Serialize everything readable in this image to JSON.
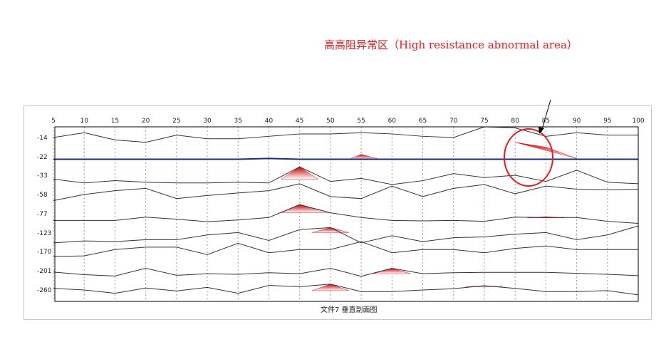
{
  "annotation": {
    "text": "高高阻异常区（High resistance abnormal area）",
    "color": "#e8191b"
  },
  "caption": "文件7 垂直剖面图",
  "chart_data": {
    "type": "line",
    "x_ticks": [
      5,
      10,
      15,
      20,
      25,
      30,
      35,
      40,
      45,
      50,
      55,
      60,
      65,
      70,
      75,
      80,
      85,
      90,
      95,
      100
    ],
    "y_ticks": [
      "-14",
      "-22",
      "-33",
      "-58",
      "-77",
      "-123",
      "-170",
      "-201",
      "-260"
    ],
    "grid": "vertical dotted",
    "series": [
      {
        "values": [
          -14,
          -12,
          -15,
          -16,
          -13,
          -14.5,
          -14.5,
          -13.5,
          -12.5,
          -12.5,
          -12,
          -12.5,
          -13.5,
          -14,
          -9,
          -10,
          -13.5,
          -12,
          -13,
          -13
        ]
      },
      {
        "values": [
          -23.5,
          -23.5,
          -23.5,
          -23.5,
          -23.5,
          -23.5,
          -23.5,
          -23,
          -23.5,
          -23.5,
          -23.5,
          -23.5,
          -23.5,
          -23.5,
          -23.5,
          -23.5,
          -23.5,
          -23.5,
          -23.5,
          -23.5
        ]
      },
      {
        "values": [
          -38,
          -43,
          -40,
          -42,
          -43,
          -43,
          -42,
          -43,
          -28,
          -41,
          -37,
          -45,
          -40,
          -32,
          -36,
          -33,
          -41,
          -30,
          -42,
          -44
        ]
      },
      {
        "values": [
          -64,
          -58,
          -53,
          -50,
          -62,
          -59,
          -56,
          -53,
          -44,
          -60,
          -62,
          -47,
          -60,
          -50,
          -45,
          -57,
          -47,
          -51,
          -52,
          -51
        ]
      },
      {
        "values": [
          -93,
          -93,
          -93,
          -85,
          -90,
          -96,
          -92,
          -86,
          -68,
          -76,
          -86,
          -93,
          -94,
          -93,
          -95,
          -85,
          -86,
          -86,
          -95,
          -100
        ]
      },
      {
        "values": [
          -148,
          -143,
          -145,
          -140,
          -140,
          -128,
          -122,
          -142,
          -115,
          -110,
          -148,
          -130,
          -145,
          -135,
          -133,
          -126,
          -122,
          -140,
          -128,
          -106
        ]
      },
      {
        "values": [
          -178,
          -177,
          -165,
          -159,
          -159,
          -175,
          -149,
          -172,
          -165,
          -165,
          -145,
          -172,
          -165,
          -165,
          -172,
          -162,
          -156,
          -165,
          -165,
          -165
        ]
      },
      {
        "values": [
          -205,
          -213,
          -217,
          -197,
          -215,
          -210,
          -212,
          -207,
          -210,
          -197,
          -218,
          -197,
          -210,
          -207,
          -206,
          -206,
          -206,
          -209,
          -212,
          -216
        ]
      },
      {
        "values": [
          -255,
          -260,
          -270,
          -254,
          -263,
          -252,
          -270,
          -246,
          -250,
          -242,
          -265,
          -265,
          -260,
          -256,
          -247,
          -255,
          -265,
          -265,
          -262,
          -275
        ]
      }
    ],
    "anomalies": [
      {
        "label": "",
        "x": [
          80,
          85,
          90
        ],
        "y": [
          -16,
          -18,
          -23
        ]
      },
      {
        "x": [
          53,
          55,
          58
        ],
        "y": [
          -23.5,
          -21,
          -23.5
        ]
      },
      {
        "x": [
          42,
          45,
          48
        ],
        "y": [
          -38,
          -28,
          -38
        ]
      },
      {
        "x": [
          42,
          45,
          50
        ],
        "y": [
          -76,
          -68,
          -76
        ]
      },
      {
        "x": [
          47,
          50,
          53
        ],
        "y": [
          -122,
          -110,
          -122
        ]
      },
      {
        "x": [
          57,
          60,
          63
        ],
        "y": [
          -210,
          -197,
          -210
        ]
      },
      {
        "x": [
          47,
          50,
          53
        ],
        "y": [
          -262,
          -242,
          -262
        ]
      },
      {
        "x": [
          72,
          75,
          78
        ],
        "y": [
          -250,
          -247,
          -250
        ]
      },
      {
        "x": [
          82,
          85,
          88
        ],
        "y": [
          -87,
          -84,
          -87
        ]
      }
    ]
  },
  "colors": {
    "anomaly": "#e8191b",
    "line": "#333333",
    "highlight_line": "#1a2c7a"
  }
}
